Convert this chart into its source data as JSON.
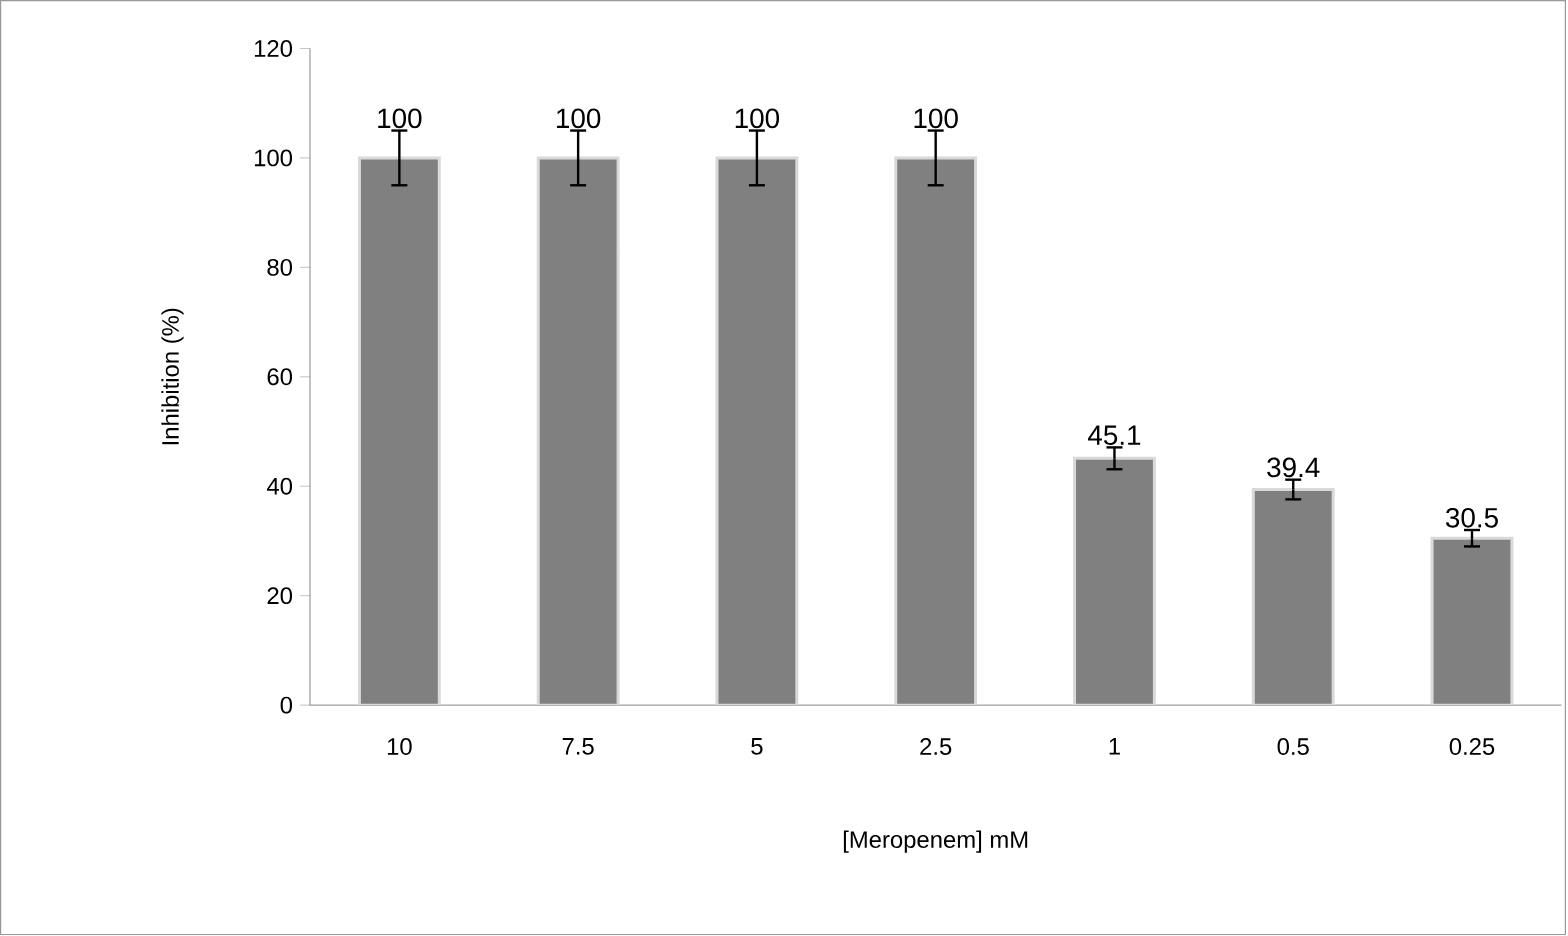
{
  "chart_data": {
    "type": "bar",
    "xlabel": "[Meropenem] mM",
    "ylabel": "Inhibition (%)",
    "categories": [
      "10",
      "7.5",
      "5",
      "2.5",
      "1",
      "0.5",
      "0.25"
    ],
    "values": [
      100,
      100,
      100,
      100,
      45.1,
      39.4,
      30.5
    ],
    "errors": [
      5,
      5,
      5,
      5,
      2,
      1.8,
      1.5
    ],
    "color": "#808080",
    "ylim": [
      0,
      120
    ],
    "yticks": [
      0,
      20,
      40,
      60,
      80,
      100,
      120
    ],
    "data_labels": true,
    "grid": false
  }
}
